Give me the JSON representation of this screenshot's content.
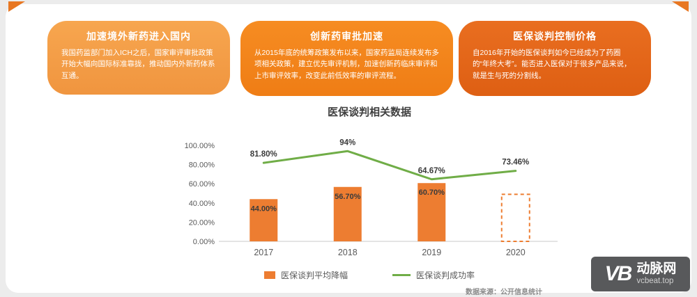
{
  "cards": [
    {
      "title": "加速境外新药进入国内",
      "body": "我国药监部门加入ICH之后，国家审评审批政策开始大幅向国际标准靠拢，推动国内外新药体系互通。",
      "color": "#F4A04A"
    },
    {
      "title": "创新药审批加速",
      "body": "从2015年底的统筹政策发布以来，国家药监局连续发布多项相关政策，建立优先审评机制，加速创新药临床审评和上市审评效率，改变此前低效率的审评流程。",
      "color": "#F28418"
    },
    {
      "title": "医保谈判控制价格",
      "body": "自2016年开始的医保谈判如今已经成为了药圈的“年终大考”。能否进入医保对于很多产品来说，就是生与死的分割线。",
      "color": "#E4661A"
    }
  ],
  "chart": {
    "title": "医保谈判相关数据",
    "source": "数据来源：公开信息统计"
  },
  "chart_data": {
    "type": "bar+line",
    "title": "医保谈判相关数据",
    "categories": [
      "2017",
      "2018",
      "2019",
      "2020"
    ],
    "series": [
      {
        "name": "医保谈判平均降幅",
        "kind": "bar",
        "color": "#ED7D31",
        "values": [
          44.0,
          56.7,
          60.7,
          49.0
        ],
        "display_labels": [
          "44.00%",
          "56.70%",
          "60.70%",
          ""
        ],
        "dashed": [
          false,
          false,
          false,
          true
        ]
      },
      {
        "name": "医保谈判成功率",
        "kind": "line",
        "color": "#70AD47",
        "values": [
          81.8,
          94.0,
          64.67,
          73.46
        ],
        "display_labels": [
          "81.80%",
          "94%",
          "64.67%",
          "73.46%"
        ]
      }
    ],
    "ylim": [
      0,
      100
    ],
    "yticks": [
      "0.00%",
      "20.00%",
      "40.00%",
      "60.00%",
      "80.00%",
      "100.00%"
    ],
    "grid": false,
    "legend_position": "bottom"
  },
  "logo": {
    "mark": "VB",
    "name": "动脉网",
    "domain": "vcbeat.top"
  }
}
